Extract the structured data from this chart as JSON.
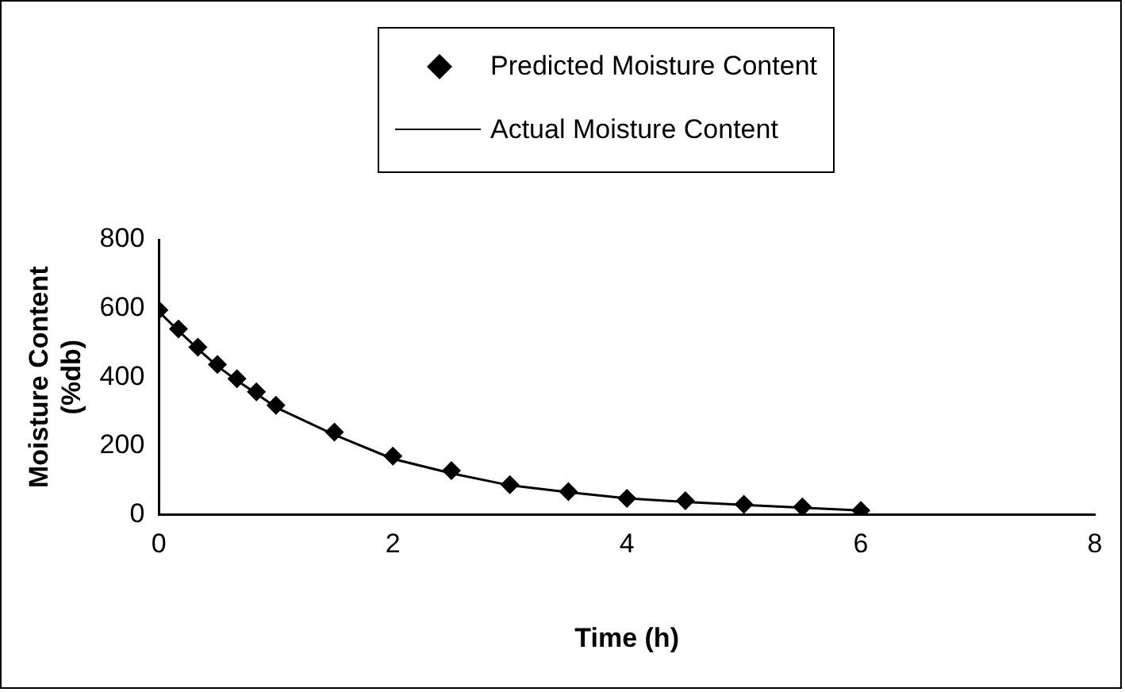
{
  "chart_data": {
    "type": "scatter",
    "xlabel": "Time (h)",
    "ylabel": "Moisture Content\n(%db)",
    "xlim": [
      0,
      8
    ],
    "xticks": [
      0,
      2,
      4,
      6,
      8
    ],
    "ylim": [
      0,
      800
    ],
    "yticks": [
      0,
      200,
      400,
      600,
      800
    ],
    "grid": false,
    "legend": "top",
    "series": [
      {
        "name": "Predicted Moisture Content",
        "type": "scatter",
        "marker": "diamond",
        "color": "#000000",
        "x": [
          0,
          0.167,
          0.333,
          0.5,
          0.667,
          0.833,
          1,
          1.5,
          2,
          2.5,
          3,
          3.5,
          4,
          4.5,
          5,
          5.5,
          6
        ],
        "values": [
          595,
          540,
          487,
          437,
          395,
          357,
          318,
          240,
          170,
          128,
          87,
          67,
          47,
          40,
          30,
          22,
          12
        ]
      },
      {
        "name": "Actual Moisture Content",
        "type": "line",
        "marker": "none",
        "line_style": "solid",
        "color": "#000000",
        "x": [
          0,
          0.167,
          0.333,
          0.5,
          0.667,
          0.833,
          1,
          1.5,
          2,
          2.5,
          3,
          3.5,
          4,
          4.5,
          5,
          5.5,
          6
        ],
        "values": [
          590,
          535,
          482,
          432,
          390,
          352,
          312,
          232,
          162,
          120,
          85,
          65,
          47,
          37,
          28,
          20,
          12
        ]
      }
    ]
  }
}
